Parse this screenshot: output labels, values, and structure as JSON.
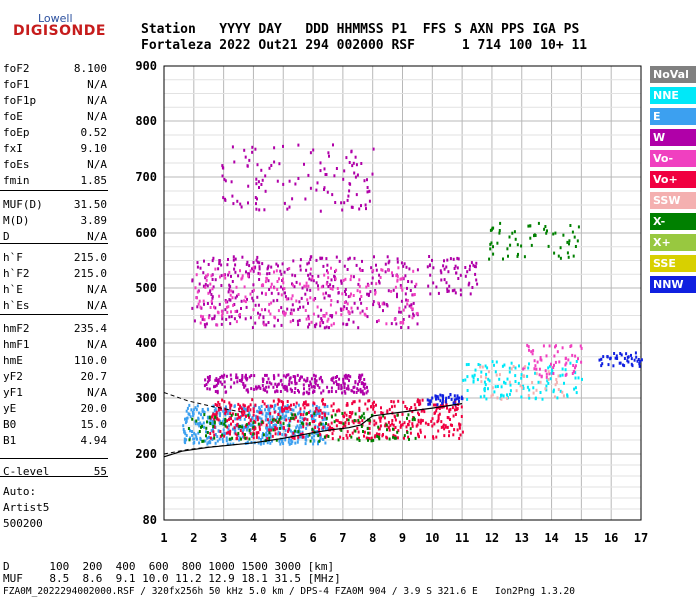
{
  "logo": {
    "top": "Lowell",
    "main": "DIGISONDE"
  },
  "header": {
    "line1": "Station   YYYY DAY   DDD HHMMSS P1  FFS S AXN PPS IGA PS",
    "line2": "Fortaleza 2022 Out21 294 002000 RSF      1 714 100 10+ 11"
  },
  "params_group1": [
    {
      "key": "foF2",
      "value": "8.100"
    },
    {
      "key": "foF1",
      "value": "N/A"
    },
    {
      "key": "foF1p",
      "value": "N/A"
    },
    {
      "key": "foE",
      "value": "N/A"
    },
    {
      "key": "foEp",
      "value": "0.52"
    },
    {
      "key": "fxI",
      "value": "9.10"
    },
    {
      "key": "foEs",
      "value": "N/A"
    },
    {
      "key": "fmin",
      "value": "1.85"
    }
  ],
  "params_group2": [
    {
      "key": "MUF(D)",
      "value": "31.50"
    },
    {
      "key": "M(D)",
      "value": "3.89"
    },
    {
      "key": "D",
      "value": "N/A"
    }
  ],
  "params_group3": [
    {
      "key": "h`F",
      "value": "215.0"
    },
    {
      "key": "h`F2",
      "value": "215.0"
    },
    {
      "key": "h`E",
      "value": "N/A"
    },
    {
      "key": "h`Es",
      "value": "N/A"
    }
  ],
  "params_group4": [
    {
      "key": "hmF2",
      "value": "235.4"
    },
    {
      "key": "hmF1",
      "value": "N/A"
    },
    {
      "key": "hmE",
      "value": "110.0"
    },
    {
      "key": "yF2",
      "value": "20.7"
    },
    {
      "key": "yF1",
      "value": "N/A"
    },
    {
      "key": "yE",
      "value": "20.0"
    },
    {
      "key": "B0",
      "value": "15.0"
    },
    {
      "key": "B1",
      "value": "4.94"
    }
  ],
  "clevel": {
    "key": "C-level",
    "value": "55"
  },
  "auto": {
    "line1": "Auto:",
    "line2": "Artist5",
    "line3": "500200"
  },
  "legend": [
    {
      "label": "NoVal",
      "color": "#808080"
    },
    {
      "label": "NNE",
      "color": "#00e8f8"
    },
    {
      "label": "E",
      "color": "#3ca0f0"
    },
    {
      "label": "W",
      "color": "#b000a8"
    },
    {
      "label": "Vo-",
      "color": "#f040c0"
    },
    {
      "label": "Vo+",
      "color": "#f00040"
    },
    {
      "label": "SSW",
      "color": "#f4b0b0"
    },
    {
      "label": "X-",
      "color": "#008000"
    },
    {
      "label": "X+",
      "color": "#98c840"
    },
    {
      "label": "SSE",
      "color": "#d8d000"
    },
    {
      "label": "NNW",
      "color": "#1020e0"
    }
  ],
  "footer": {
    "line1": "D      100  200  400  600  800 1000 1500 3000 [km]",
    "line2": "MUF    8.5  8.6  9.1 10.0 11.2 12.9 18.1 31.5 [MHz]",
    "line3": "FZA0M_2022294002000.RSF / 320fx256h 50 kHz 5.0 km / DPS-4 FZA0M 904 / 3.9 S 321.6 E   Ion2Png 1.3.20"
  },
  "chart_data": {
    "type": "scatter",
    "xlim": [
      1,
      17
    ],
    "ylim": [
      80,
      900
    ],
    "xticks": [
      1,
      2,
      3,
      4,
      5,
      6,
      7,
      8,
      9,
      10,
      11,
      12,
      13,
      14,
      15,
      16,
      17
    ],
    "yticks": [
      80,
      200,
      300,
      400,
      500,
      600,
      700,
      800,
      900
    ],
    "grid": true,
    "legend_position": "right",
    "clusters": [
      {
        "name": "E",
        "color": "#3ca0f0",
        "x": [
          1.6,
          6.5
        ],
        "y": [
          220,
          290
        ],
        "n": 480
      },
      {
        "name": "Vo+",
        "color": "#f00040",
        "x": [
          2.5,
          11.0
        ],
        "y": [
          230,
          300
        ],
        "n": 520
      },
      {
        "name": "X-",
        "color": "#008000",
        "x": [
          1.8,
          9.5
        ],
        "y": [
          225,
          275
        ],
        "n": 140
      },
      {
        "name": "W",
        "color": "#b000a8",
        "x": [
          2.3,
          7.8
        ],
        "y": [
          310,
          345
        ],
        "n": 260
      },
      {
        "name": "W",
        "color": "#b000a8",
        "x": [
          1.9,
          9.5
        ],
        "y": [
          430,
          560
        ],
        "n": 380
      },
      {
        "name": "Vo-",
        "color": "#f040c0",
        "x": [
          2.0,
          9.5
        ],
        "y": [
          435,
          540
        ],
        "n": 220
      },
      {
        "name": "W",
        "color": "#b000a8",
        "x": [
          2.9,
          8.0
        ],
        "y": [
          640,
          760
        ],
        "n": 120
      },
      {
        "name": "NNE",
        "color": "#00e8f8",
        "x": [
          11.0,
          15.0
        ],
        "y": [
          300,
          370
        ],
        "n": 110
      },
      {
        "name": "NNW",
        "color": "#1020e0",
        "x": [
          9.8,
          11.0
        ],
        "y": [
          290,
          310
        ],
        "n": 40
      },
      {
        "name": "NNW",
        "color": "#1020e0",
        "x": [
          15.5,
          17.0
        ],
        "y": [
          360,
          385
        ],
        "n": 40
      },
      {
        "name": "X-",
        "color": "#008000",
        "x": [
          11.8,
          15.0
        ],
        "y": [
          555,
          620
        ],
        "n": 60
      },
      {
        "name": "Vo-",
        "color": "#f040c0",
        "x": [
          13.0,
          15.0
        ],
        "y": [
          340,
          400
        ],
        "n": 60
      },
      {
        "name": "W",
        "color": "#b000a8",
        "x": [
          9.8,
          11.5
        ],
        "y": [
          490,
          560
        ],
        "n": 60
      },
      {
        "name": "SSW",
        "color": "#f4b0b0",
        "x": [
          11.5,
          14.5
        ],
        "y": [
          300,
          360
        ],
        "n": 40
      }
    ],
    "profile_curve": {
      "x": [
        1.0,
        1.6,
        2.5,
        4.0,
        5.0,
        6.0,
        6.6,
        7.2,
        7.6,
        8.0,
        9.0,
        10.0,
        11.0
      ],
      "y": [
        195,
        205,
        212,
        220,
        228,
        238,
        243,
        247,
        252,
        268,
        275,
        282,
        290
      ]
    },
    "dashed_lines": [
      {
        "x": [
          1.0,
          1.8,
          2.6,
          3.6
        ],
        "y": [
          310,
          295,
          285,
          275
        ]
      },
      {
        "x": [
          1.0,
          1.8,
          2.6,
          3.6
        ],
        "y": [
          200,
          208,
          213,
          218
        ]
      }
    ]
  }
}
